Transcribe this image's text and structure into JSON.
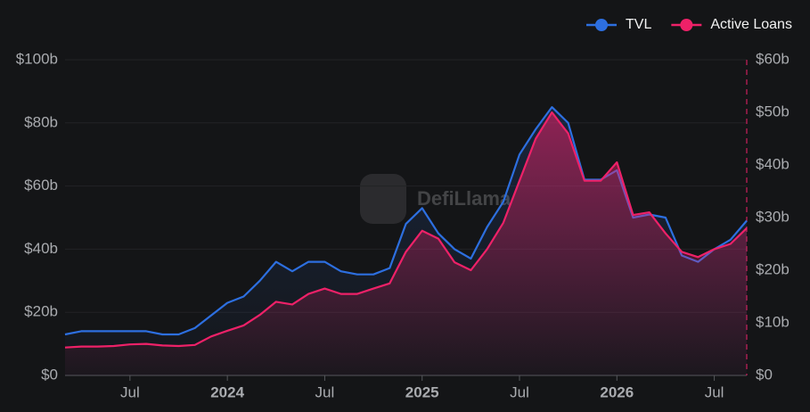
{
  "chart_data": {
    "type": "line",
    "watermark": "DefiLlama",
    "x": [
      "2023-03",
      "2023-04",
      "2023-05",
      "2023-06",
      "2023-07",
      "2023-08",
      "2023-09",
      "2023-10",
      "2023-11",
      "2023-12",
      "2024-01",
      "2024-02",
      "2024-03",
      "2024-04",
      "2024-05",
      "2024-06",
      "2024-07",
      "2024-08",
      "2024-09",
      "2024-10",
      "2024-11",
      "2024-12",
      "2025-01",
      "2025-02",
      "2025-03",
      "2025-04",
      "2025-05",
      "2025-06",
      "2025-07",
      "2025-08",
      "2025-09",
      "2025-10",
      "2025-11",
      "2025-12",
      "2026-01",
      "2026-02",
      "2026-03",
      "2026-04",
      "2026-05",
      "2026-06",
      "2026-07",
      "2026-08",
      "2026-09"
    ],
    "series": [
      {
        "name": "TVL",
        "color": "#2d6fe0",
        "values": [
          13,
          14,
          14,
          14,
          14,
          14,
          13,
          13,
          15,
          19,
          23,
          25,
          30,
          36,
          33,
          36,
          36,
          33,
          32,
          32,
          34,
          48,
          53,
          45,
          40,
          37,
          47,
          55,
          70,
          78,
          85,
          80,
          62,
          62,
          65,
          50,
          51,
          50,
          38,
          36,
          40,
          43,
          49
        ]
      },
      {
        "name": "Active Loans",
        "color": "#ee2168",
        "axis": "y2",
        "values": [
          5.3,
          5.5,
          5.5,
          5.6,
          5.9,
          6,
          5.7,
          5.6,
          5.8,
          7.4,
          8.5,
          9.5,
          11.5,
          14,
          13.5,
          15.5,
          16.5,
          15.5,
          15.5,
          16.5,
          17.5,
          23.5,
          27.5,
          26,
          21.5,
          20,
          24,
          29,
          37,
          45,
          50,
          46,
          37,
          37,
          40.5,
          30.5,
          31,
          27,
          23.5,
          22.5,
          24,
          25,
          28
        ]
      }
    ],
    "xlim": [
      "2023-03",
      "2026-09"
    ],
    "xticks": [
      {
        "value": "2023-07",
        "label": "Jul"
      },
      {
        "value": "2024-01",
        "label": "2024"
      },
      {
        "value": "2024-07",
        "label": "Jul"
      },
      {
        "value": "2025-01",
        "label": "2025"
      },
      {
        "value": "2025-07",
        "label": "Jul"
      },
      {
        "value": "2026-01",
        "label": "2026"
      },
      {
        "value": "2026-07",
        "label": "Jul"
      }
    ],
    "ylim": [
      0,
      100
    ],
    "yticks": [
      {
        "value": 0,
        "label": "$0"
      },
      {
        "value": 20,
        "label": "$20b"
      },
      {
        "value": 40,
        "label": "$40b"
      },
      {
        "value": 60,
        "label": "$60b"
      },
      {
        "value": 80,
        "label": "$80b"
      },
      {
        "value": 100,
        "label": "$100b"
      }
    ],
    "y2lim": [
      0,
      60
    ],
    "y2ticks": [
      {
        "value": 0,
        "label": "$0"
      },
      {
        "value": 10,
        "label": "$10b"
      },
      {
        "value": 20,
        "label": "$20b"
      },
      {
        "value": 30,
        "label": "$30b"
      },
      {
        "value": 40,
        "label": "$40b"
      },
      {
        "value": 50,
        "label": "$50b"
      },
      {
        "value": 60,
        "label": "$60b"
      }
    ],
    "grid": true,
    "legend": "top-right"
  }
}
